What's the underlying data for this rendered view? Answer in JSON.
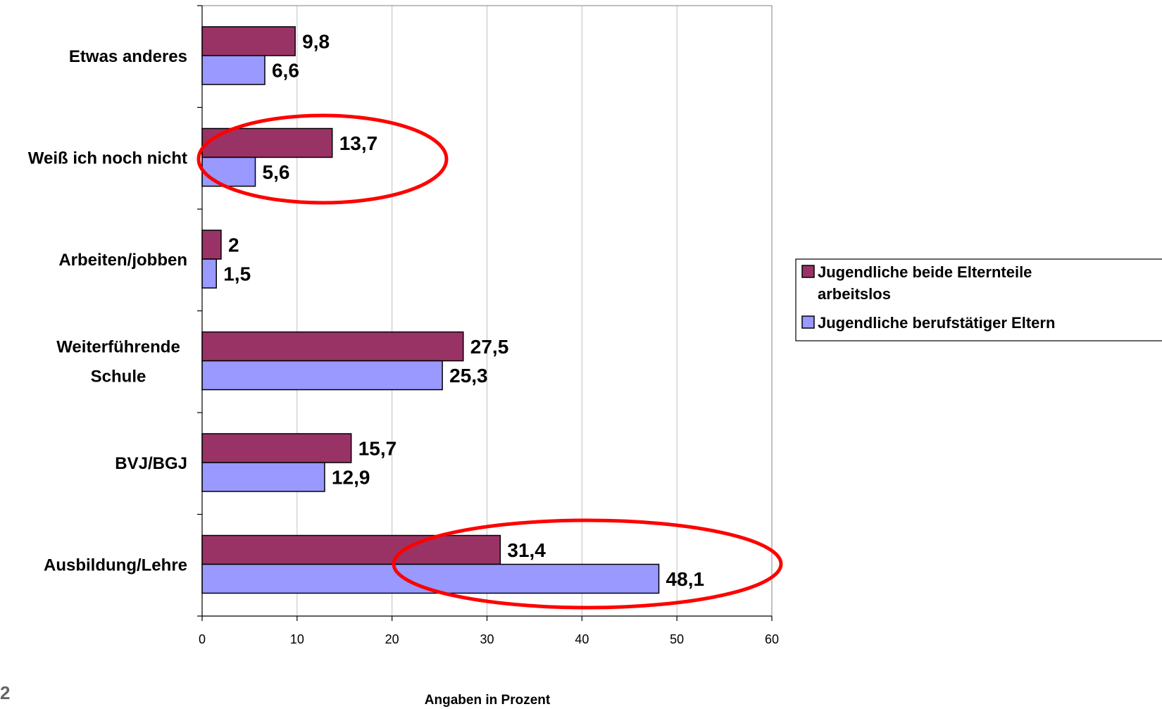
{
  "page_number": "2",
  "chart_data": {
    "type": "bar",
    "orientation": "horizontal",
    "categories": [
      [
        "Etwas anderes"
      ],
      [
        "Weiß ich noch nicht"
      ],
      [
        "Arbeiten/jobben"
      ],
      [
        "Weiterführende",
        "Schule"
      ],
      [
        "BVJ/BGJ"
      ],
      [
        "Ausbildung/Lehre"
      ]
    ],
    "series": [
      {
        "name": [
          "Jugendliche beide Elternteile",
          "arbeitslos"
        ],
        "color": "#993366",
        "values": [
          9.8,
          13.7,
          2,
          27.5,
          15.7,
          31.4
        ],
        "labels": [
          "9,8",
          "13,7",
          "2",
          "27,5",
          "15,7",
          "31,4"
        ]
      },
      {
        "name": [
          "Jugendliche berufstätiger Eltern"
        ],
        "color": "#9999ff",
        "values": [
          6.6,
          5.6,
          1.5,
          25.3,
          12.9,
          48.1
        ],
        "labels": [
          "6,6",
          "5,6",
          "1,5",
          "25,3",
          "12,9",
          "48,1"
        ]
      }
    ],
    "xlim": [
      0,
      60
    ],
    "xticks": [
      0,
      10,
      20,
      30,
      40,
      50,
      60
    ],
    "xlabel": "Angaben in Prozent",
    "grid": "vertical",
    "legend_position": "right",
    "highlights": [
      {
        "category": "Weiß ich noch nicht",
        "shape": "ellipse",
        "color": "#ff0000"
      },
      {
        "category": "Ausbildung/Lehre",
        "shape": "ellipse",
        "color": "#ff0000"
      }
    ]
  }
}
